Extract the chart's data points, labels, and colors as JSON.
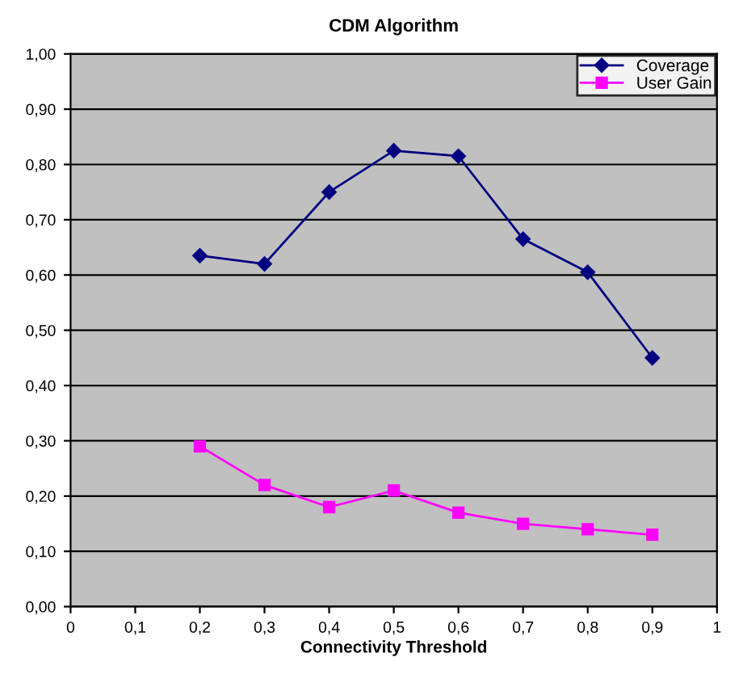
{
  "chart_data": {
    "type": "line",
    "title": "CDM Algorithm",
    "xlabel": "Connectivity Threshold",
    "x": [
      0.2,
      0.3,
      0.4,
      0.5,
      0.6,
      0.7,
      0.8,
      0.9
    ],
    "series": [
      {
        "name": "Coverage",
        "color": "#000080",
        "marker": "diamond",
        "values": [
          0.635,
          0.62,
          0.75,
          0.825,
          0.815,
          0.665,
          0.605,
          0.45
        ]
      },
      {
        "name": "User Gain",
        "color": "#ff00ff",
        "marker": "square",
        "values": [
          0.29,
          0.22,
          0.18,
          0.21,
          0.17,
          0.15,
          0.14,
          0.13
        ]
      }
    ],
    "xlim": [
      0,
      1
    ],
    "ylim": [
      0,
      1
    ],
    "xticks": [
      0,
      {
        "value": 0.1,
        "label": "0,1"
      },
      {
        "value": 0.2,
        "label": "0,2"
      },
      {
        "value": 0.3,
        "label": "0,3"
      },
      {
        "value": 0.4,
        "label": "0,4"
      },
      {
        "value": 0.5,
        "label": "0,5"
      },
      {
        "value": 0.6,
        "label": "0,6"
      },
      {
        "value": 0.7,
        "label": "0,7"
      },
      {
        "value": 0.8,
        "label": "0,8"
      },
      {
        "value": 0.9,
        "label": "0,9"
      },
      1
    ],
    "yticks": [
      {
        "value": 0,
        "label": "0,00"
      },
      {
        "value": 0.1,
        "label": "0,10"
      },
      {
        "value": 0.2,
        "label": "0,20"
      },
      {
        "value": 0.3,
        "label": "0,30"
      },
      {
        "value": 0.4,
        "label": "0,40"
      },
      {
        "value": 0.5,
        "label": "0,50"
      },
      {
        "value": 0.6,
        "label": "0,60"
      },
      {
        "value": 0.7,
        "label": "0,70"
      },
      {
        "value": 0.8,
        "label": "0,80"
      },
      {
        "value": 0.9,
        "label": "0,90"
      },
      {
        "value": 1.0,
        "label": "1,00"
      }
    ],
    "grid": "y",
    "legend": "top right",
    "line_style": "solid"
  }
}
